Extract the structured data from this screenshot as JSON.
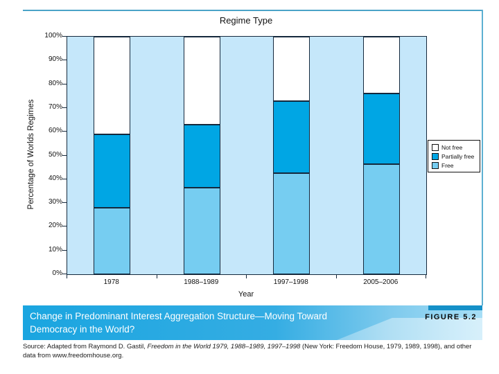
{
  "page": {
    "figure_label": "FIGURE 5.2",
    "caption_line1": "Change in Predominant Interest Aggregation Structure—Moving Toward",
    "caption_line2": "Democracy in the World?",
    "source_prefix": "Source: Adapted from Raymond D. Gastil, ",
    "source_italic": "Freedom in the World 1979, 1988–1989, 1997–1998",
    "source_suffix": " (New York: Freedom House, 1979, 1989, 1998), and other data from www.freedomhouse.org."
  },
  "chart_data": {
    "type": "bar",
    "stacked": true,
    "title": "Regime Type",
    "xlabel": "Year",
    "ylabel": "Percentage of Worlds Regimes",
    "categories": [
      "1978",
      "1988–1989",
      "1997–1998",
      "2005–2006"
    ],
    "series": [
      {
        "name": "Free",
        "color": "#76cdf1",
        "values": [
          28,
          36.5,
          42.5,
          46.5
        ]
      },
      {
        "name": "Partially free",
        "color": "#00a6e4",
        "values": [
          31,
          26.5,
          30.5,
          29.5
        ]
      },
      {
        "name": "Not free",
        "color": "#ffffff",
        "values": [
          41,
          37,
          27,
          24
        ]
      }
    ],
    "ylim": [
      0,
      100
    ],
    "ytick_step": 10,
    "ytick_suffix": "%",
    "grid": false,
    "legend_position": "right",
    "legend_order": [
      "Not free",
      "Partially free",
      "Free"
    ],
    "plot_bg": "#c5e7fa",
    "bar_border": "#14283c"
  },
  "colors": {
    "frame_top_rule": "#4aa3c7",
    "frame_right_rule": "#5db0d2",
    "caption_band_left": "#1aa5e0",
    "caption_band_right": "#a7def6",
    "caption_topstrip": "#1590c8",
    "partially_free": "#00a6e4",
    "free": "#76cdf1",
    "not_free": "#ffffff"
  }
}
